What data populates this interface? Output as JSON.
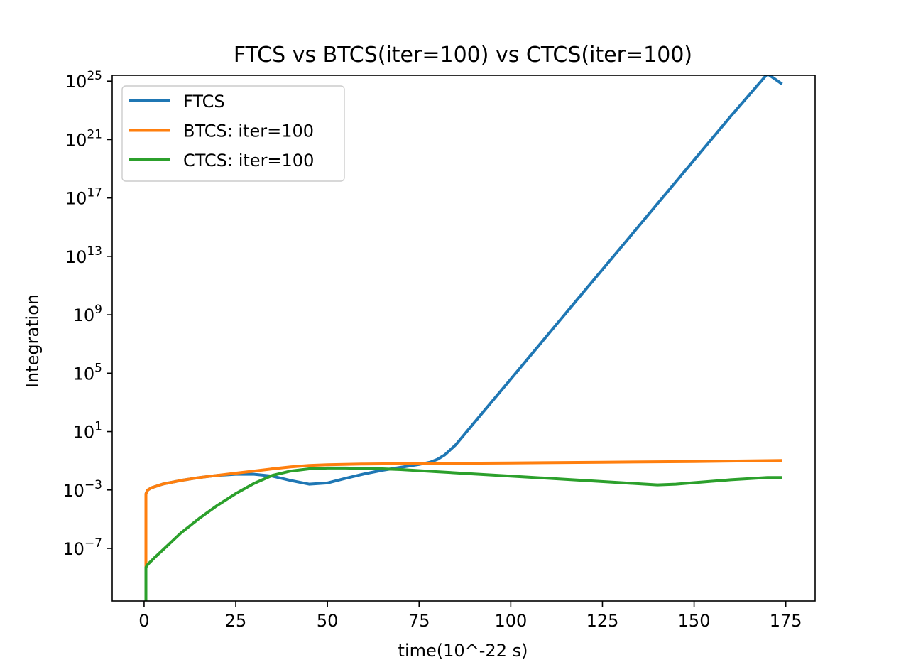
{
  "chart_data": {
    "type": "line",
    "title": "FTCS vs BTCS(iter=100) vs CTCS(iter=100)",
    "xlabel": "time(10^-22 s)",
    "ylabel": "Integration",
    "yscale": "log",
    "xlim": [
      -8.7,
      183
    ],
    "ylim_log10": [
      -10.6,
      25.4
    ],
    "grid": false,
    "legend_position": "top-left",
    "xticks": [
      0,
      25,
      50,
      75,
      100,
      125,
      150,
      175
    ],
    "yticks_base": "10",
    "yticks_exponent": [
      25,
      21,
      17,
      13,
      9,
      5,
      1,
      -3,
      -7
    ],
    "series": [
      {
        "name": "FTCS",
        "color": "#1f77b4",
        "x": [
          0.5,
          0.6,
          1,
          2,
          5,
          10,
          15,
          20,
          25,
          30,
          35,
          40,
          45,
          50,
          55,
          60,
          65,
          70,
          75,
          78,
          80,
          82,
          85,
          90,
          100,
          110,
          120,
          130,
          140,
          150,
          160,
          170,
          174
        ],
        "log10_y": [
          -3.3,
          -3.2,
          -3.0,
          -2.85,
          -2.6,
          -2.35,
          -2.15,
          -2.0,
          -1.92,
          -1.92,
          -2.05,
          -2.35,
          -2.6,
          -2.52,
          -2.2,
          -1.9,
          -1.65,
          -1.45,
          -1.25,
          -1.1,
          -0.9,
          -0.6,
          0.1,
          1.6,
          4.6,
          7.6,
          10.6,
          13.6,
          16.6,
          19.6,
          22.6,
          25.5,
          24.8
        ]
      },
      {
        "name": "BTCS: iter=100",
        "color": "#ff7f0e",
        "x": [
          0.5,
          0.5,
          0.6,
          1,
          2,
          5,
          10,
          15,
          20,
          25,
          30,
          35,
          40,
          45,
          50,
          60,
          70,
          80,
          100,
          125,
          150,
          174
        ],
        "log10_y": [
          -10.6,
          -3.3,
          -3.2,
          -3.0,
          -2.85,
          -2.6,
          -2.35,
          -2.15,
          -2.0,
          -1.85,
          -1.7,
          -1.55,
          -1.42,
          -1.32,
          -1.27,
          -1.22,
          -1.2,
          -1.18,
          -1.15,
          -1.1,
          -1.05,
          -0.98
        ]
      },
      {
        "name": "CTCS: iter=100",
        "color": "#2ca02c",
        "x": [
          0.5,
          0.5,
          1,
          3,
          6,
          10,
          15,
          20,
          25,
          30,
          35,
          40,
          45,
          50,
          55,
          60,
          65,
          70,
          80,
          90,
          100,
          110,
          120,
          130,
          140,
          145,
          150,
          160,
          170,
          174
        ],
        "log10_y": [
          -10.6,
          -8.3,
          -8.1,
          -7.6,
          -6.9,
          -5.95,
          -4.95,
          -4.05,
          -3.25,
          -2.55,
          -2.0,
          -1.7,
          -1.55,
          -1.5,
          -1.5,
          -1.52,
          -1.55,
          -1.6,
          -1.75,
          -1.9,
          -2.05,
          -2.2,
          -2.35,
          -2.5,
          -2.65,
          -2.6,
          -2.5,
          -2.3,
          -2.15,
          -2.15
        ]
      }
    ]
  }
}
